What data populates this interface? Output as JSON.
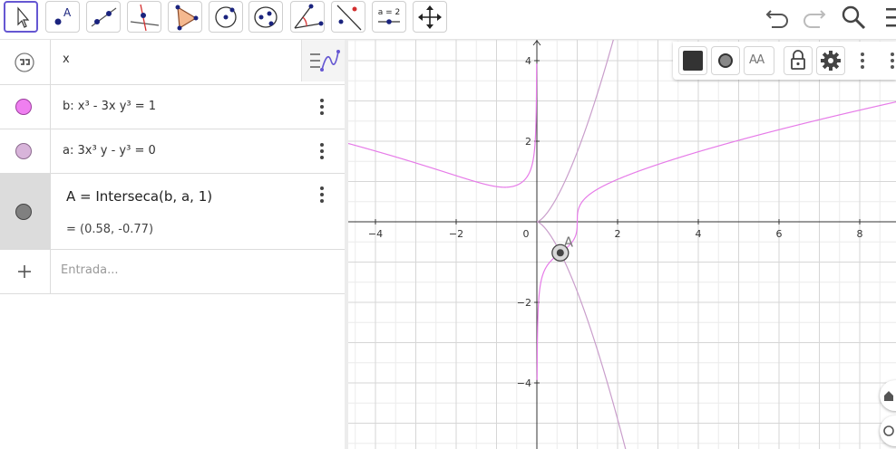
{
  "toolbar": {
    "tools": [
      "move",
      "point",
      "line",
      "perpendicular-line",
      "polygon",
      "circle-center-point",
      "ellipse",
      "angle",
      "reflect",
      "slider",
      "move-graphics-view"
    ],
    "slider_label": "a = 2",
    "point_label": "A"
  },
  "algebra": {
    "input_header": "x",
    "rows": [
      {
        "label": "b: x³ - 3x y³ = 1",
        "color": "#ef7ff0"
      },
      {
        "label": "a: 3x³ y - y³ = 0",
        "color": "#d8b4da"
      },
      {
        "label": "A = Interseca(b, a, 1)",
        "value": "= (0.58, -0.77)",
        "color": "#808080"
      }
    ],
    "input_placeholder": "Entrada..."
  },
  "graphics": {
    "x_ticks": [
      "−4",
      "−2",
      "0",
      "2",
      "4",
      "6",
      "8"
    ],
    "y_ticks": [
      "4",
      "2",
      "−2",
      "−4"
    ],
    "point_label": "A",
    "curve_b_color": "#e67be8",
    "curve_a_color": "#c99ecb",
    "style_bar_text": "AA"
  }
}
